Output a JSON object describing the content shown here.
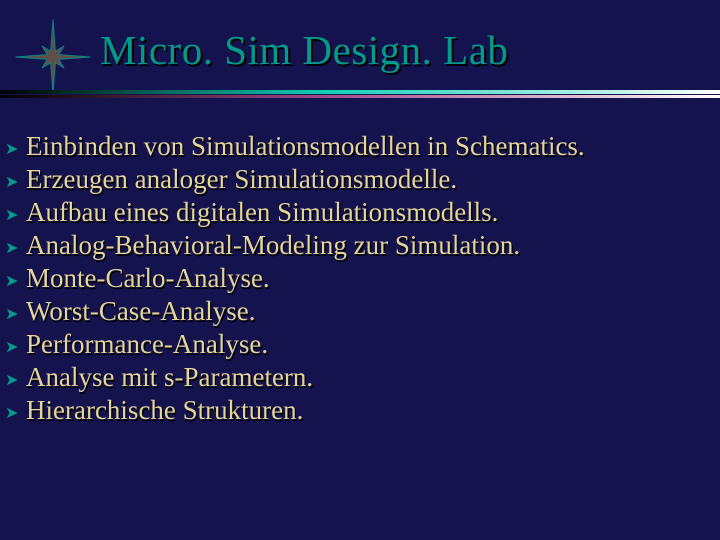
{
  "colors": {
    "background": "#14134e",
    "title": "#009a8e",
    "title_shadow": "#000000",
    "text": "#e3d49b",
    "text_shadow": "#000000",
    "bullet": "#009a8e",
    "divider_gradient_start": "#000000",
    "divider_gradient_mid": "#0fcfb8",
    "divider_gradient_end": "#ffffff",
    "divider2_gradient_start": "#000000",
    "divider2_gradient_mid": "#a04a8a",
    "divider2_gradient_end": "#ffffff",
    "star_stroke": "#0a9a8e",
    "star_fill": "#6a5a4a"
  },
  "typography": {
    "title_fontsize": 41,
    "body_fontsize": 27,
    "font_family": "Times New Roman"
  },
  "title": "Micro. Sim Design. Lab",
  "bullets": [
    "Einbinden von Simulationsmodellen in Schematics.",
    "Erzeugen analoger Simulationsmodelle.",
    "Aufbau eines digitalen Simulationsmodells.",
    "Analog-Behavioral-Modeling zur Simulation.",
    "Monte-Carlo-Analyse.",
    "Worst-Case-Analyse.",
    "Performance-Analyse.",
    "Analyse mit s-Parametern.",
    "Hierarchische Strukturen."
  ],
  "bullet_char": "➤"
}
